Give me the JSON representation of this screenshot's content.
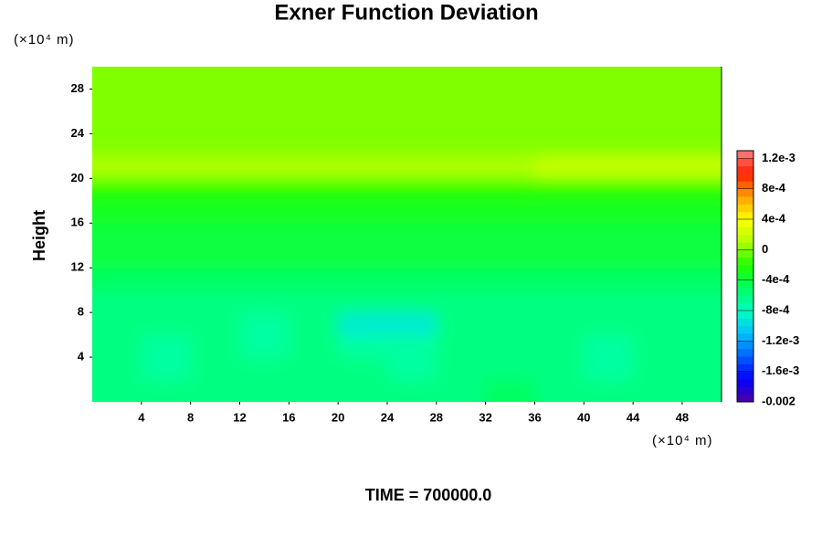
{
  "chart_data": {
    "type": "contour",
    "title": "Exner Function Deviation",
    "y_unit_label": "(×10⁴ m)",
    "x_unit_label": "(×10⁴ m)",
    "ylabel": "Height",
    "footer": "TIME = 700000.0",
    "xlim": [
      0,
      51.2
    ],
    "ylim": [
      0,
      30
    ],
    "xticks": [
      4,
      8,
      12,
      16,
      20,
      24,
      28,
      32,
      36,
      40,
      44,
      48
    ],
    "yticks": [
      4,
      8,
      12,
      16,
      20,
      24,
      28
    ],
    "x": [
      2,
      6,
      10,
      14,
      18,
      22,
      26,
      30,
      34,
      38,
      42,
      46,
      50
    ],
    "y": [
      1,
      3,
      5,
      7,
      9,
      11,
      13,
      15,
      17,
      19,
      21,
      23,
      25,
      27,
      29
    ],
    "z": [
      [
        -0.0006,
        -0.0006,
        -0.0006,
        -0.0006,
        -0.0006,
        -0.0006,
        -0.0006,
        -0.0006,
        -0.0005,
        -0.0006,
        -0.0006,
        -0.0006,
        -0.0006
      ],
      [
        -0.0006,
        -0.0007,
        -0.0006,
        -0.0006,
        -0.0006,
        -0.0006,
        -0.0007,
        -0.0006,
        -0.0006,
        -0.0006,
        -0.0007,
        -0.0006,
        -0.0006
      ],
      [
        -0.0006,
        -0.0007,
        -0.0006,
        -0.0007,
        -0.0006,
        -0.0007,
        -0.0007,
        -0.0006,
        -0.0006,
        -0.0006,
        -0.0007,
        -0.0006,
        -0.0006
      ],
      [
        -0.0006,
        -0.0006,
        -0.0006,
        -0.0007,
        -0.0006,
        -0.0009,
        -0.0009,
        -0.0006,
        -0.0006,
        -0.0006,
        -0.0006,
        -0.0006,
        -0.0006
      ],
      [
        -0.0006,
        -0.0006,
        -0.0006,
        -0.0006,
        -0.0006,
        -0.0006,
        -0.0006,
        -0.0006,
        -0.0006,
        -0.0006,
        -0.0006,
        -0.0006,
        -0.0006
      ],
      [
        -0.0005,
        -0.0005,
        -0.0005,
        -0.0005,
        -0.0005,
        -0.0005,
        -0.0005,
        -0.0005,
        -0.0005,
        -0.0005,
        -0.0005,
        -0.0005,
        -0.0005
      ],
      [
        -0.0004,
        -0.0004,
        -0.0004,
        -0.0004,
        -0.0004,
        -0.0004,
        -0.0004,
        -0.0004,
        -0.0004,
        -0.0004,
        -0.0004,
        -0.0004,
        -0.0004
      ],
      [
        -0.0004,
        -0.0004,
        -0.0004,
        -0.0004,
        -0.0004,
        -0.0004,
        -0.0004,
        -0.0004,
        -0.0004,
        -0.0004,
        -0.0004,
        -0.0004,
        -0.0004
      ],
      [
        -0.0003,
        -0.0003,
        -0.0003,
        -0.0003,
        -0.0003,
        -0.0003,
        -0.0003,
        -0.0003,
        -0.0003,
        -0.0003,
        -0.0003,
        -0.0003,
        -0.0003
      ],
      [
        -0.0002,
        -0.0002,
        -0.0002,
        -0.0002,
        -0.0002,
        -0.0002,
        -0.0002,
        -0.0002,
        -0.0002,
        -0.0002,
        -0.0002,
        -0.0002,
        -0.0002
      ],
      [
        0.0001,
        0.0001,
        0.0001,
        0.0001,
        0.0001,
        0.0001,
        0.0001,
        0.0001,
        0.0001,
        0.0002,
        0.0002,
        0.0002,
        0.0002
      ],
      [
        0,
        0,
        0,
        0,
        0,
        0,
        0,
        0,
        0,
        0,
        0,
        0,
        0
      ],
      [
        0,
        0,
        0,
        0,
        0,
        0,
        0,
        0,
        0,
        0,
        0,
        0,
        0
      ],
      [
        0,
        0,
        0,
        0,
        0,
        0,
        0,
        0,
        0,
        0,
        0,
        0,
        0
      ],
      [
        0,
        0,
        0,
        0,
        0,
        0,
        0,
        0,
        0,
        0,
        0,
        0,
        0
      ]
    ],
    "clim": [
      -0.002,
      0.0013
    ],
    "colorscale": [
      "#5000a0",
      "#0000ff",
      "#0060ff",
      "#00c0ff",
      "#00ffc0",
      "#00ff60",
      "#20ff00",
      "#b0ff00",
      "#ffff00",
      "#ffa000",
      "#ff2000",
      "#ff8080"
    ],
    "cticks": [
      {
        "value": 0.0012,
        "label": "1.2e-3"
      },
      {
        "value": 0.0008,
        "label": "8e-4"
      },
      {
        "value": 0.0004,
        "label": "4e-4"
      },
      0,
      {
        "value": -0.0004,
        "label": "-4e-4"
      },
      {
        "value": -0.0008,
        "label": "-8e-4"
      },
      {
        "value": -0.0012,
        "label": "-1.2e-3"
      },
      {
        "value": -0.0016,
        "label": "-1.6e-3"
      },
      -0.002
    ]
  }
}
